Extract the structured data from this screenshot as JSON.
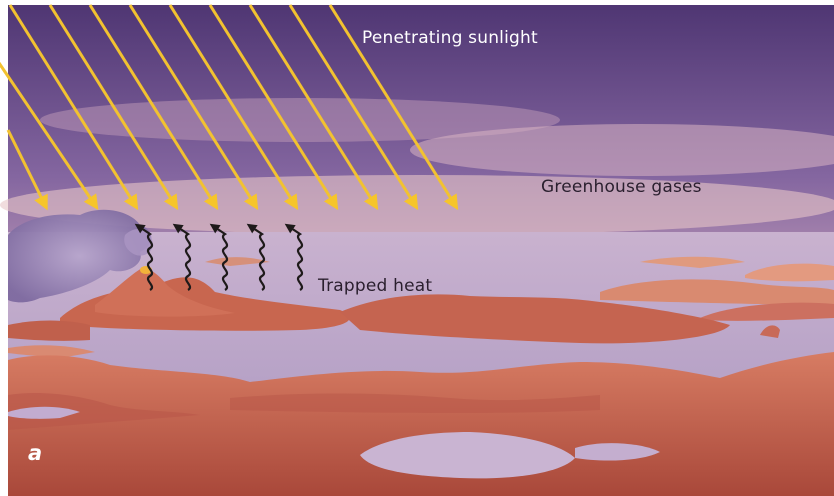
{
  "labels": {
    "sunlight": "Penetrating sunlight",
    "greenhouse": "Greenhouse gases",
    "trapped_heat": "Trapped heat",
    "panel": "a"
  },
  "colors": {
    "sky_top": "#5a3c7a",
    "sky_mid": "#8a6a9e",
    "haze": "#d8b0bc",
    "water": "#b9a3c6",
    "land": "#c7654f",
    "land_dark": "#a84e3c",
    "sun_ray": "#f2c230",
    "heat_wave": "#1e1a1a",
    "smoke": "#9a86b6"
  },
  "icons": [
    "sun-ray-arrow",
    "heat-wave-arrow",
    "volcano-icon",
    "smoke-plume"
  ]
}
